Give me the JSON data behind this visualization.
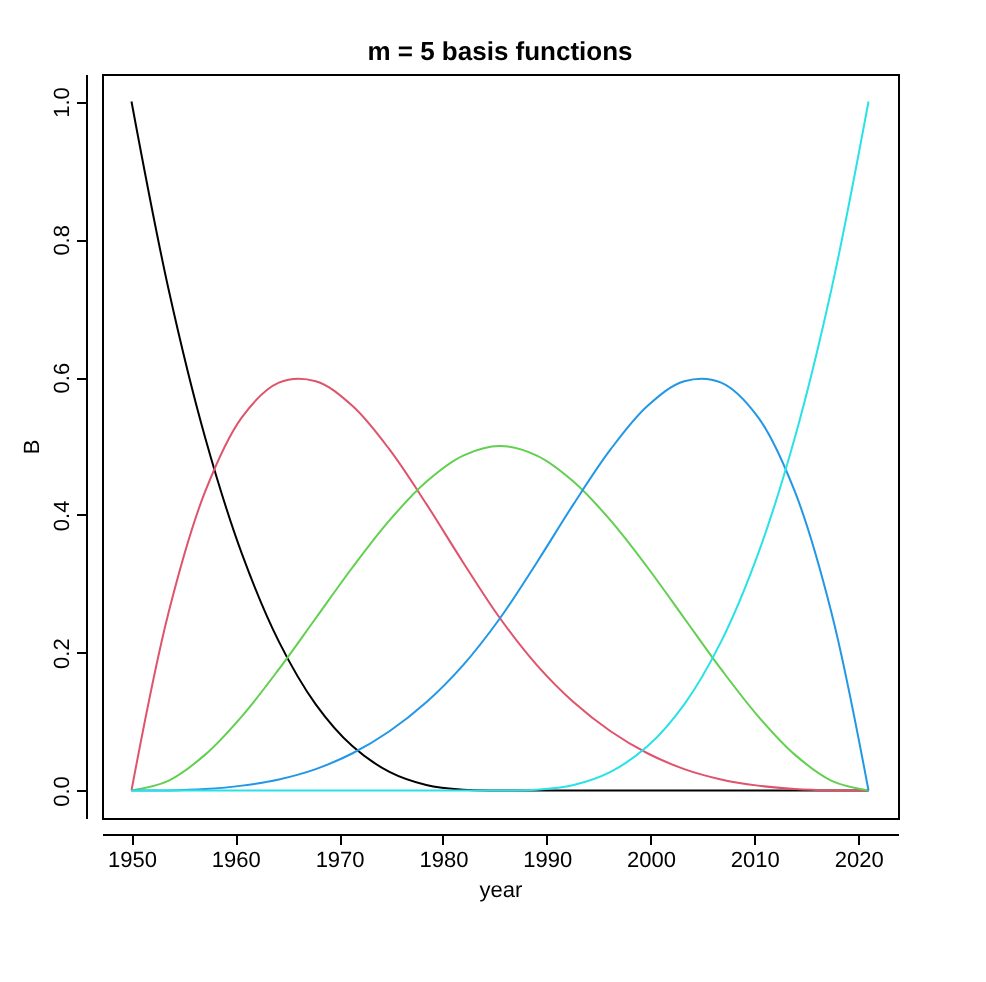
{
  "chart_data": {
    "type": "line",
    "title": "m = 5 basis functions",
    "xlabel": "year",
    "ylabel": "B",
    "x": [
      1950,
      1953.55,
      1957.1,
      1960.65,
      1964.2,
      1967.75,
      1971.3,
      1974.85,
      1978.4,
      1981.95,
      1985.5,
      1989.05,
      1992.6,
      1996.15,
      1999.7,
      2003.25,
      2006.8,
      2010.35,
      2013.9,
      2017.45,
      2021
    ],
    "series": [
      {
        "color": "#000000",
        "values": [
          1,
          0.729,
          0.512,
          0.343,
          0.216,
          0.125,
          0.064,
          0.027,
          0.008,
          0.001,
          0,
          0,
          0,
          0,
          0,
          0,
          0,
          0,
          0,
          0,
          0
        ]
      },
      {
        "color": "#df536b",
        "values": [
          0,
          0.257,
          0.434,
          0.542,
          0.592,
          0.594,
          0.558,
          0.495,
          0.416,
          0.331,
          0.25,
          0.182,
          0.128,
          0.086,
          0.054,
          0.031,
          0.016,
          0.007,
          0.002,
          0,
          0
        ]
      },
      {
        "color": "#61d04f",
        "values": [
          0,
          0.014,
          0.052,
          0.108,
          0.176,
          0.25,
          0.324,
          0.392,
          0.448,
          0.486,
          0.5,
          0.486,
          0.448,
          0.392,
          0.324,
          0.25,
          0.176,
          0.108,
          0.052,
          0.014,
          0
        ]
      },
      {
        "color": "#2297e6",
        "values": [
          0,
          0,
          0.002,
          0.007,
          0.016,
          0.031,
          0.054,
          0.086,
          0.128,
          0.182,
          0.25,
          0.331,
          0.416,
          0.495,
          0.558,
          0.594,
          0.592,
          0.542,
          0.434,
          0.257,
          0
        ]
      },
      {
        "color": "#28e2e5",
        "values": [
          0,
          0,
          0,
          0,
          0,
          0,
          0,
          0,
          0,
          0,
          0,
          0.001,
          0.008,
          0.027,
          0.064,
          0.125,
          0.216,
          0.343,
          0.512,
          0.729,
          1
        ]
      }
    ],
    "xlim": [
      1947.16,
      2023.84
    ],
    "ylim": [
      -0.04,
      1.04
    ],
    "xticks": [
      1950,
      1960,
      1970,
      1980,
      1990,
      2000,
      2010,
      2020
    ],
    "yticks": [
      {
        "value": 0,
        "label": "0.0"
      },
      0.2,
      0.4,
      0.6,
      0.8,
      {
        "value": 1,
        "label": "1.0"
      }
    ],
    "grid": false,
    "legend": false,
    "marker": "none",
    "line_style": "solid"
  }
}
